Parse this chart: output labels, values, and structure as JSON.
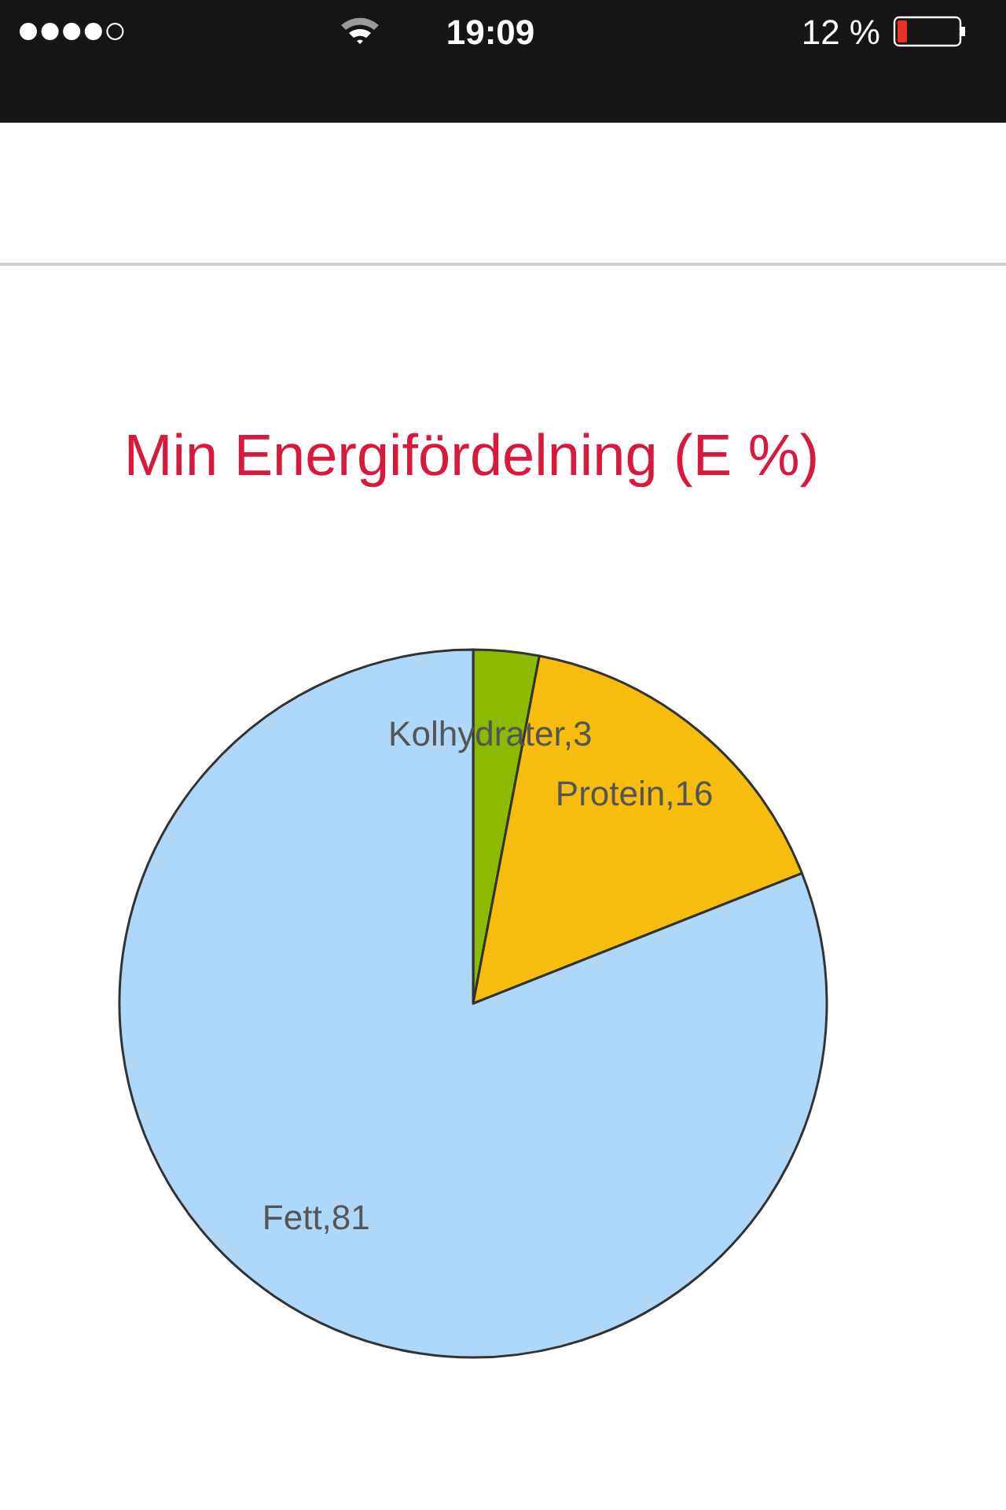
{
  "chart_data": {
    "type": "pie",
    "title": "Min Energifördelning (E %)",
    "categories": [
      "Kolhydrater",
      "Protein",
      "Fett"
    ],
    "values": [
      3,
      16,
      81
    ],
    "colors": [
      "#8cba00",
      "#f6bd0f",
      "#afd8f8"
    ],
    "value_labels": [
      ",3",
      ",16",
      ",81"
    ],
    "annotations": [
      "19:09",
      "12 %"
    ]
  }
}
